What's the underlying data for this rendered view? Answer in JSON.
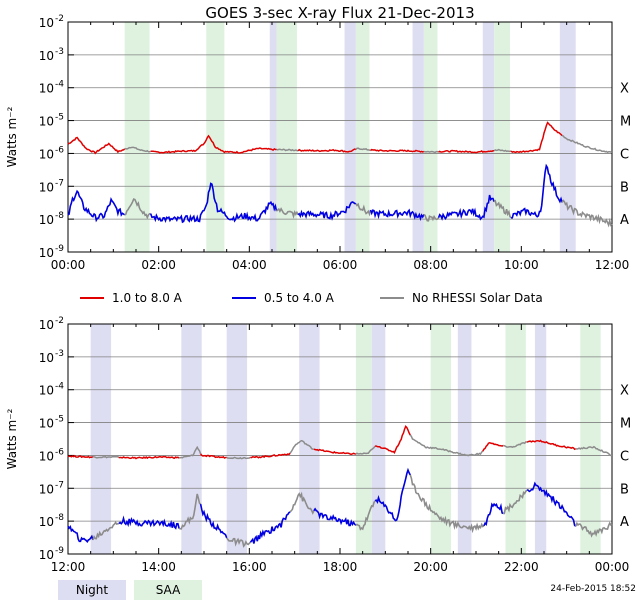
{
  "chart_data": [
    {
      "type": "line",
      "title": "GOES 3-sec X-ray Flux   21-Dec-2013",
      "ylabel": "Watts m⁻²",
      "yscale": "log",
      "ylim_exp": [
        -9,
        -2
      ],
      "x_hours": [
        0,
        12
      ],
      "xticks": [
        "00:00",
        "02:00",
        "04:00",
        "06:00",
        "08:00",
        "10:00",
        "12:00"
      ],
      "yticks": [
        {
          "exp": -2,
          "label": "10",
          "sup": "-2"
        },
        {
          "exp": -3,
          "label": "10",
          "sup": "-3"
        },
        {
          "exp": -4,
          "label": "10",
          "sup": "-4"
        },
        {
          "exp": -5,
          "label": "10",
          "sup": "-5"
        },
        {
          "exp": -6,
          "label": "10",
          "sup": "-6"
        },
        {
          "exp": -7,
          "label": "10",
          "sup": "-7"
        },
        {
          "exp": -8,
          "label": "10",
          "sup": "-8"
        },
        {
          "exp": -9,
          "label": "10",
          "sup": "-9"
        }
      ],
      "class_labels": [
        {
          "exp": -4,
          "label": "X"
        },
        {
          "exp": -5,
          "label": "M"
        },
        {
          "exp": -6,
          "label": "C"
        },
        {
          "exp": -7,
          "label": "B"
        },
        {
          "exp": -8,
          "label": "A"
        }
      ],
      "night": [
        [
          4.45,
          4.6
        ],
        [
          6.1,
          6.35
        ],
        [
          7.6,
          7.85
        ],
        [
          9.15,
          9.4
        ],
        [
          10.85,
          11.2
        ]
      ],
      "saa": [
        [
          1.25,
          1.8
        ],
        [
          3.05,
          3.45
        ],
        [
          4.6,
          5.05
        ],
        [
          6.35,
          6.65
        ],
        [
          7.85,
          8.15
        ],
        [
          9.4,
          9.75
        ]
      ],
      "gray_ranges": [
        [
          1.25,
          1.8
        ],
        [
          4.6,
          5.05
        ],
        [
          6.35,
          6.65
        ],
        [
          7.85,
          8.15
        ],
        [
          9.4,
          9.75
        ],
        [
          10.9,
          12.0
        ]
      ],
      "series": [
        {
          "name": "1.0 to 8.0 A",
          "color": "#e00000",
          "points": [
            [
              0.0,
              -5.72
            ],
            [
              0.2,
              -5.52
            ],
            [
              0.4,
              -5.85
            ],
            [
              0.6,
              -5.98
            ],
            [
              0.9,
              -5.7
            ],
            [
              1.1,
              -5.95
            ],
            [
              1.4,
              -5.8
            ],
            [
              1.6,
              -5.9
            ],
            [
              1.85,
              -5.95
            ],
            [
              2.1,
              -5.97
            ],
            [
              2.5,
              -5.93
            ],
            [
              2.8,
              -5.92
            ],
            [
              3.0,
              -5.7
            ],
            [
              3.1,
              -5.45
            ],
            [
              3.25,
              -5.8
            ],
            [
              3.45,
              -5.95
            ],
            [
              3.8,
              -5.97
            ],
            [
              4.2,
              -5.85
            ],
            [
              4.5,
              -5.88
            ],
            [
              5.0,
              -5.9
            ],
            [
              5.5,
              -5.92
            ],
            [
              5.9,
              -5.9
            ],
            [
              6.2,
              -5.95
            ],
            [
              6.4,
              -5.85
            ],
            [
              6.7,
              -5.9
            ],
            [
              7.0,
              -5.92
            ],
            [
              7.5,
              -5.92
            ],
            [
              8.0,
              -5.95
            ],
            [
              8.5,
              -5.93
            ],
            [
              9.0,
              -5.96
            ],
            [
              9.5,
              -5.9
            ],
            [
              9.9,
              -5.96
            ],
            [
              10.2,
              -5.92
            ],
            [
              10.4,
              -5.88
            ],
            [
              10.5,
              -5.4
            ],
            [
              10.58,
              -5.05
            ],
            [
              10.7,
              -5.25
            ],
            [
              11.0,
              -5.55
            ],
            [
              11.4,
              -5.78
            ],
            [
              11.7,
              -5.9
            ],
            [
              12.0,
              -5.97
            ]
          ]
        },
        {
          "name": "0.5 to 4.0 A",
          "color": "#0000e0",
          "points": [
            [
              0.0,
              -7.95
            ],
            [
              0.1,
              -7.4
            ],
            [
              0.2,
              -7.15
            ],
            [
              0.35,
              -7.65
            ],
            [
              0.6,
              -7.95
            ],
            [
              0.8,
              -7.9
            ],
            [
              0.95,
              -7.45
            ],
            [
              1.1,
              -7.75
            ],
            [
              1.25,
              -7.85
            ],
            [
              1.45,
              -7.35
            ],
            [
              1.7,
              -7.85
            ],
            [
              1.9,
              -7.95
            ],
            [
              2.3,
              -8.02
            ],
            [
              2.7,
              -7.98
            ],
            [
              2.9,
              -8.0
            ],
            [
              3.05,
              -7.6
            ],
            [
              3.15,
              -6.85
            ],
            [
              3.3,
              -7.7
            ],
            [
              3.6,
              -7.98
            ],
            [
              3.9,
              -7.9
            ],
            [
              4.2,
              -8.0
            ],
            [
              4.45,
              -7.55
            ],
            [
              4.7,
              -7.75
            ],
            [
              5.0,
              -7.85
            ],
            [
              5.4,
              -7.85
            ],
            [
              5.8,
              -7.9
            ],
            [
              6.1,
              -7.75
            ],
            [
              6.3,
              -7.45
            ],
            [
              6.6,
              -7.8
            ],
            [
              7.0,
              -7.85
            ],
            [
              7.5,
              -7.8
            ],
            [
              8.0,
              -8.0
            ],
            [
              8.3,
              -7.9
            ],
            [
              8.6,
              -7.85
            ],
            [
              8.9,
              -7.75
            ],
            [
              9.15,
              -7.95
            ],
            [
              9.3,
              -7.35
            ],
            [
              9.5,
              -7.6
            ],
            [
              9.8,
              -7.9
            ],
            [
              10.1,
              -7.75
            ],
            [
              10.35,
              -7.9
            ],
            [
              10.45,
              -7.6
            ],
            [
              10.55,
              -6.3
            ],
            [
              10.65,
              -6.8
            ],
            [
              10.8,
              -7.3
            ],
            [
              11.0,
              -7.6
            ],
            [
              11.3,
              -7.85
            ],
            [
              11.6,
              -7.95
            ],
            [
              12.0,
              -8.15
            ]
          ]
        }
      ]
    },
    {
      "type": "line",
      "title": "",
      "ylabel": "Watts m⁻²",
      "yscale": "log",
      "ylim_exp": [
        -9,
        -2
      ],
      "x_hours": [
        12,
        24
      ],
      "xticks": [
        "12:00",
        "14:00",
        "16:00",
        "18:00",
        "20:00",
        "22:00",
        "00:00"
      ],
      "yticks": [
        {
          "exp": -2,
          "label": "10",
          "sup": "-2"
        },
        {
          "exp": -3,
          "label": "10",
          "sup": "-3"
        },
        {
          "exp": -4,
          "label": "10",
          "sup": "-4"
        },
        {
          "exp": -5,
          "label": "10",
          "sup": "-5"
        },
        {
          "exp": -6,
          "label": "10",
          "sup": "-6"
        },
        {
          "exp": -7,
          "label": "10",
          "sup": "-7"
        },
        {
          "exp": -8,
          "label": "10",
          "sup": "-8"
        },
        {
          "exp": -9,
          "label": "10",
          "sup": "-9"
        }
      ],
      "class_labels": [
        {
          "exp": -4,
          "label": "X"
        },
        {
          "exp": -5,
          "label": "M"
        },
        {
          "exp": -6,
          "label": "C"
        },
        {
          "exp": -7,
          "label": "B"
        },
        {
          "exp": -8,
          "label": "A"
        }
      ],
      "night": [
        [
          12.5,
          12.95
        ],
        [
          14.5,
          14.95
        ],
        [
          15.5,
          15.95
        ],
        [
          17.1,
          17.55
        ],
        [
          18.7,
          19.0
        ],
        [
          20.6,
          20.9
        ],
        [
          22.3,
          22.55
        ]
      ],
      "saa": [
        [
          18.35,
          18.7
        ],
        [
          20.0,
          20.45
        ],
        [
          21.65,
          22.1
        ],
        [
          23.3,
          23.75
        ]
      ],
      "gray_ranges": [
        [
          12.55,
          13.1
        ],
        [
          14.45,
          14.9
        ],
        [
          15.5,
          16.0
        ],
        [
          16.9,
          17.4
        ],
        [
          18.35,
          18.75
        ],
        [
          19.55,
          21.15
        ],
        [
          21.6,
          22.1
        ],
        [
          23.2,
          24.0
        ]
      ],
      "series": [
        {
          "name": "1.0 to 8.0 A",
          "color": "#e00000",
          "points": [
            [
              12.0,
              -6.02
            ],
            [
              12.5,
              -6.05
            ],
            [
              13.0,
              -6.05
            ],
            [
              13.5,
              -6.08
            ],
            [
              14.0,
              -6.05
            ],
            [
              14.5,
              -6.07
            ],
            [
              14.75,
              -6.0
            ],
            [
              14.85,
              -5.75
            ],
            [
              14.95,
              -6.0
            ],
            [
              15.3,
              -6.05
            ],
            [
              15.8,
              -6.08
            ],
            [
              16.2,
              -6.05
            ],
            [
              16.6,
              -6.0
            ],
            [
              16.9,
              -5.95
            ],
            [
              17.0,
              -5.7
            ],
            [
              17.15,
              -5.55
            ],
            [
              17.4,
              -5.8
            ],
            [
              17.8,
              -5.9
            ],
            [
              18.2,
              -5.95
            ],
            [
              18.6,
              -5.95
            ],
            [
              18.8,
              -5.7
            ],
            [
              19.2,
              -5.9
            ],
            [
              19.35,
              -5.5
            ],
            [
              19.45,
              -5.1
            ],
            [
              19.6,
              -5.5
            ],
            [
              19.9,
              -5.75
            ],
            [
              20.2,
              -5.8
            ],
            [
              20.5,
              -5.9
            ],
            [
              20.8,
              -6.0
            ],
            [
              21.1,
              -5.95
            ],
            [
              21.3,
              -5.6
            ],
            [
              21.5,
              -5.7
            ],
            [
              21.8,
              -5.75
            ],
            [
              22.1,
              -5.6
            ],
            [
              22.4,
              -5.55
            ],
            [
              22.8,
              -5.7
            ],
            [
              23.2,
              -5.8
            ],
            [
              23.6,
              -5.75
            ],
            [
              24.0,
              -6.0
            ]
          ]
        },
        {
          "name": "0.5 to 4.0 A",
          "color": "#0000e0",
          "points": [
            [
              12.0,
              -8.15
            ],
            [
              12.3,
              -8.6
            ],
            [
              12.6,
              -8.5
            ],
            [
              12.9,
              -8.2
            ],
            [
              13.2,
              -8.0
            ],
            [
              13.6,
              -8.05
            ],
            [
              14.0,
              -8.05
            ],
            [
              14.5,
              -8.15
            ],
            [
              14.75,
              -7.9
            ],
            [
              14.85,
              -7.25
            ],
            [
              15.0,
              -7.8
            ],
            [
              15.2,
              -8.1
            ],
            [
              15.6,
              -8.6
            ],
            [
              16.0,
              -8.7
            ],
            [
              16.3,
              -8.4
            ],
            [
              16.7,
              -8.1
            ],
            [
              16.9,
              -7.7
            ],
            [
              17.1,
              -7.15
            ],
            [
              17.3,
              -7.6
            ],
            [
              17.7,
              -7.9
            ],
            [
              18.1,
              -8.0
            ],
            [
              18.5,
              -8.2
            ],
            [
              18.8,
              -7.3
            ],
            [
              19.1,
              -7.7
            ],
            [
              19.25,
              -8.0
            ],
            [
              19.4,
              -6.95
            ],
            [
              19.5,
              -6.4
            ],
            [
              19.6,
              -6.9
            ],
            [
              19.9,
              -7.5
            ],
            [
              20.2,
              -7.9
            ],
            [
              20.5,
              -8.1
            ],
            [
              20.9,
              -8.2
            ],
            [
              21.2,
              -8.1
            ],
            [
              21.4,
              -7.4
            ],
            [
              21.6,
              -7.7
            ],
            [
              21.9,
              -7.4
            ],
            [
              22.3,
              -6.9
            ],
            [
              22.6,
              -7.2
            ],
            [
              22.9,
              -7.6
            ],
            [
              23.2,
              -8.1
            ],
            [
              23.6,
              -8.4
            ],
            [
              24.0,
              -8.1
            ]
          ]
        },
        {
          "name": "No RHESSI Solar Data",
          "color": "#8c8c8c",
          "points": []
        }
      ]
    }
  ],
  "legend": [
    {
      "label": "1.0 to 8.0 A",
      "color": "#e00000"
    },
    {
      "label": "0.5 to 4.0 A",
      "color": "#0000e0"
    },
    {
      "label": "No RHESSI Solar Data",
      "color": "#8c8c8c"
    }
  ],
  "colors": {
    "night": "#dedef2",
    "saa": "#dff2e0",
    "grid": "#808080",
    "gray": "#8c8c8c"
  },
  "footer": {
    "night_label": "Night",
    "saa_label": "SAA",
    "timestamp": "24-Feb-2015 18:52"
  }
}
